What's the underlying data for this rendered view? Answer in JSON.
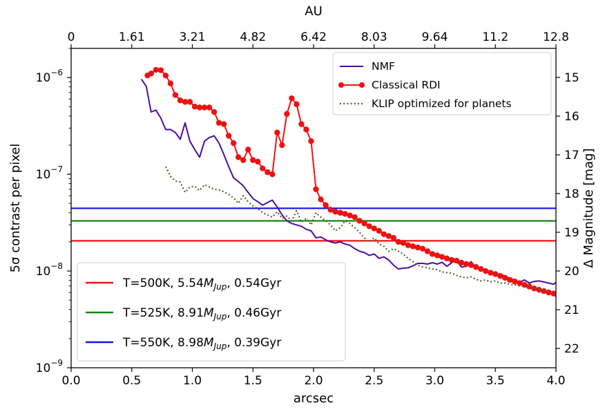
{
  "chart_data": {
    "type": "line",
    "xlabel": "arcsec",
    "ylabel": "5σ contrast per pixel",
    "top_xlabel": "AU",
    "right_ylabel": "Δ Magnitude [mag]",
    "xlim": [
      0.0,
      4.0
    ],
    "ylim_log": [
      1e-09,
      2e-06
    ],
    "y_scale": "log",
    "right_ylim": [
      22.5,
      14.25
    ],
    "x_ticks": [
      "0.0",
      "0.5",
      "1.0",
      "1.5",
      "2.0",
      "2.5",
      "3.0",
      "3.5",
      "4.0"
    ],
    "x_tick_values": [
      0.0,
      0.5,
      1.0,
      1.5,
      2.0,
      2.5,
      3.0,
      3.5,
      4.0
    ],
    "top_ticks": [
      "0",
      "1.61",
      "3.21",
      "4.82",
      "6.42",
      "8.03",
      "9.64",
      "11.2",
      "12.8"
    ],
    "y_ticks": [
      {
        "value": 1e-06,
        "base": "10",
        "exp": "−6"
      },
      {
        "value": 1e-07,
        "base": "10",
        "exp": "−7"
      },
      {
        "value": 1e-08,
        "base": "10",
        "exp": "−8"
      },
      {
        "value": 1e-09,
        "base": "10",
        "exp": "−9"
      }
    ],
    "right_ticks": [
      "15",
      "16",
      "17",
      "18",
      "19",
      "20",
      "21",
      "22"
    ],
    "right_tick_values": [
      15,
      16,
      17,
      18,
      19,
      20,
      21,
      22
    ],
    "series": [
      {
        "name": "NMF",
        "color": "#4b0c9c",
        "style": "solid",
        "x": [
          0.58,
          0.62,
          0.66,
          0.7,
          0.74,
          0.78,
          0.82,
          0.86,
          0.9,
          0.94,
          0.98,
          1.02,
          1.06,
          1.1,
          1.14,
          1.18,
          1.22,
          1.26,
          1.3,
          1.34,
          1.38,
          1.42,
          1.46,
          1.5,
          1.54,
          1.58,
          1.62,
          1.66,
          1.7,
          1.74,
          1.78,
          1.82,
          1.86,
          1.9,
          1.94,
          1.98,
          2.02,
          2.06,
          2.1,
          2.14,
          2.18,
          2.22,
          2.26,
          2.3,
          2.34,
          2.38,
          2.42,
          2.46,
          2.5,
          2.54,
          2.58,
          2.62,
          2.66,
          2.7,
          2.74,
          2.78,
          2.82,
          2.86,
          2.9,
          2.94,
          2.98,
          3.02,
          3.06,
          3.1,
          3.14,
          3.18,
          3.22,
          3.26,
          3.3,
          3.34,
          3.38,
          3.42,
          3.46,
          3.5,
          3.54,
          3.58,
          3.62,
          3.66,
          3.7,
          3.74,
          3.78,
          3.82,
          3.86,
          3.9,
          3.94,
          3.98,
          4.0
        ],
        "y": [
          9.6e-07,
          8.1e-07,
          4.4e-07,
          4.6e-07,
          3.8e-07,
          2.9e-07,
          2.9e-07,
          2.7e-07,
          2.3e-07,
          3.4e-07,
          2.2e-07,
          1.8e-07,
          1.5e-07,
          2.2e-07,
          2.4e-07,
          2.5e-07,
          2.1e-07,
          1.6e-07,
          1.2e-07,
          9.2e-08,
          8.4e-08,
          7.6e-08,
          6.5e-08,
          5.6e-08,
          5.2e-08,
          4.8e-08,
          5.1e-08,
          5.4e-08,
          4.6e-08,
          3.8e-08,
          3.3e-08,
          3.1e-08,
          3e-08,
          2.9e-08,
          2.7e-08,
          2.6e-08,
          2.2e-08,
          2.25e-08,
          2.1e-08,
          2e-08,
          1.95e-08,
          2e-08,
          1.9e-08,
          1.85e-08,
          1.7e-08,
          1.6e-08,
          1.55e-08,
          1.45e-08,
          1.5e-08,
          1.35e-08,
          1.4e-08,
          1.3e-08,
          1.15e-08,
          1.05e-08,
          1.07e-08,
          1.08e-08,
          1.13e-08,
          1.2e-08,
          1.2e-08,
          1.18e-08,
          1.22e-08,
          1.18e-08,
          1.23e-08,
          1.12e-08,
          1.22e-08,
          1.28e-08,
          1.1e-08,
          1.12e-08,
          1.25e-08,
          1.08e-08,
          1.06e-08,
          1e-08,
          9.6e-09,
          9.4e-09,
          9.2e-09,
          8.9e-09,
          8.3e-09,
          8.1e-09,
          7.6e-09,
          8.1e-09,
          7.5e-09,
          7.8e-09,
          7.9e-09,
          7.7e-09,
          7.5e-09,
          7.3e-09,
          7.6e-09
        ]
      },
      {
        "name": "Classical RDI",
        "color": "#ee1111",
        "style": "solid",
        "marker": "circle",
        "x": [
          0.63,
          0.66,
          0.7,
          0.74,
          0.78,
          0.82,
          0.86,
          0.9,
          0.94,
          0.98,
          1.02,
          1.06,
          1.1,
          1.14,
          1.18,
          1.22,
          1.26,
          1.3,
          1.34,
          1.38,
          1.42,
          1.46,
          1.5,
          1.54,
          1.58,
          1.62,
          1.66,
          1.7,
          1.74,
          1.78,
          1.82,
          1.86,
          1.9,
          1.94,
          1.98,
          2.02,
          2.06,
          2.1,
          2.14,
          2.18,
          2.22,
          2.26,
          2.3,
          2.34,
          2.38,
          2.42,
          2.46,
          2.5,
          2.54,
          2.58,
          2.62,
          2.66,
          2.7,
          2.74,
          2.78,
          2.82,
          2.86,
          2.9,
          2.94,
          2.98,
          3.02,
          3.06,
          3.1,
          3.14,
          3.18,
          3.22,
          3.26,
          3.3,
          3.34,
          3.38,
          3.42,
          3.46,
          3.5,
          3.54,
          3.58,
          3.62,
          3.66,
          3.7,
          3.74,
          3.78,
          3.82,
          3.86,
          3.9,
          3.94,
          3.98,
          4.0
        ],
        "y": [
          1.05e-06,
          1.1e-06,
          1.2e-06,
          1.19e-06,
          1.05e-06,
          8.7e-07,
          6.6e-07,
          5.8e-07,
          5.6e-07,
          5.6e-07,
          5e-07,
          4.9e-07,
          4.9e-07,
          4.9e-07,
          4.4e-07,
          3.4e-07,
          3.3e-07,
          2.5e-07,
          2.1e-07,
          1.5e-07,
          1.4e-07,
          1.8e-07,
          1.4e-07,
          1.35e-07,
          1.15e-07,
          1.05e-07,
          1e-07,
          2.7e-07,
          2e-07,
          4.2e-07,
          6.1e-07,
          5.3e-07,
          3.3e-07,
          2.9e-07,
          2.2e-07,
          7e-08,
          5.5e-08,
          4.8e-08,
          4.3e-08,
          4.1e-08,
          4e-08,
          3.9e-08,
          3.75e-08,
          3.6e-08,
          3.3e-08,
          3.1e-08,
          2.9e-08,
          2.75e-08,
          2.6e-08,
          2.4e-08,
          2.3e-08,
          2.2e-08,
          2e-08,
          1.95e-08,
          1.85e-08,
          1.8e-08,
          1.75e-08,
          1.7e-08,
          1.6e-08,
          1.5e-08,
          1.45e-08,
          1.4e-08,
          1.35e-08,
          1.3e-08,
          1.28e-08,
          1.22e-08,
          1.18e-08,
          1.15e-08,
          1.1e-08,
          1.05e-08,
          1e-08,
          9.6e-09,
          9.3e-09,
          8.9e-09,
          8.5e-09,
          8.1e-09,
          7.8e-09,
          7.5e-09,
          7.2e-09,
          6.9e-09,
          6.6e-09,
          6.4e-09,
          6.2e-09,
          6e-09,
          5.85e-09,
          5.8e-09
        ]
      },
      {
        "name": "KLIP optimized for planets",
        "color": "#55602a",
        "style": "dotted",
        "x": [
          0.78,
          0.82,
          0.86,
          0.9,
          0.94,
          0.98,
          1.02,
          1.06,
          1.1,
          1.14,
          1.18,
          1.22,
          1.26,
          1.3,
          1.34,
          1.38,
          1.42,
          1.46,
          1.5,
          1.54,
          1.58,
          1.62,
          1.66,
          1.7,
          1.74,
          1.78,
          1.82,
          1.86,
          1.9,
          1.94,
          1.98,
          2.02,
          2.06,
          2.1,
          2.14,
          2.18,
          2.22,
          2.26,
          2.3,
          2.34,
          2.38,
          2.42,
          2.46,
          2.5,
          2.54,
          2.58,
          2.62,
          2.66,
          2.7,
          2.74,
          2.78,
          2.82,
          2.86,
          2.9,
          2.94,
          2.98,
          3.02,
          3.06,
          3.1,
          3.14,
          3.18,
          3.22,
          3.26,
          3.3,
          3.34,
          3.38,
          3.42,
          3.46,
          3.5,
          3.54,
          3.58,
          3.62,
          3.66,
          3.7,
          3.74,
          3.78,
          3.82,
          3.86,
          3.9,
          3.94,
          3.98
        ],
        "y": [
          1.2e-07,
          9.5e-08,
          8.5e-08,
          8.3e-08,
          6.5e-08,
          7.4e-08,
          7.5e-08,
          6.8e-08,
          7.8e-08,
          7.4e-08,
          7e-08,
          6.9e-08,
          6.6e-08,
          6.2e-08,
          5.7e-08,
          5e-08,
          6e-08,
          5.2e-08,
          4.7e-08,
          4.4e-08,
          4e-08,
          3.8e-08,
          3.6e-08,
          4.1e-08,
          3.5e-08,
          3.7e-08,
          3.3e-08,
          4.2e-08,
          3.2e-08,
          3.5e-08,
          3e-08,
          4e-08,
          3.6e-08,
          3.3e-08,
          3e-08,
          2.6e-08,
          2.8e-08,
          3.3e-08,
          3.1e-08,
          2.8e-08,
          2.5e-08,
          2.2e-08,
          2e-08,
          2.2e-08,
          1.9e-08,
          1.8e-08,
          1.6e-08,
          1.7e-08,
          1.6e-08,
          1.5e-08,
          1.35e-08,
          1.25e-08,
          1.15e-08,
          1.1e-08,
          1.08e-08,
          1.05e-08,
          1.03e-08,
          9.8e-09,
          9.6e-09,
          9.5e-09,
          9e-09,
          8.7e-09,
          8.5e-09,
          8.7e-09,
          8.2e-09,
          7.9e-09,
          8.1e-09,
          7.7e-09,
          7.9e-09,
          7.5e-09,
          7.5e-09,
          7.3e-09,
          7.2e-09,
          7e-09,
          6.9e-09,
          6.8e-09,
          6.7e-09,
          6.5e-09,
          6.4e-09,
          6.2e-09,
          6e-09
        ]
      }
    ],
    "hlines": [
      {
        "name_prefix": "T=500K, 5.54",
        "name_var": "M",
        "name_sub": "Jup",
        "name_suffix": ", 0.54Gyr",
        "value": 2.05e-08,
        "color": "#ee1111"
      },
      {
        "name_prefix": "T=525K, 8.91",
        "name_var": "M",
        "name_sub": "Jup",
        "name_suffix": ", 0.46Gyr",
        "value": 3.3e-08,
        "color": "#118811"
      },
      {
        "name_prefix": "T=550K, 8.98",
        "name_var": "M",
        "name_sub": "Jup",
        "name_suffix": ", 0.39Gyr",
        "value": 4.45e-08,
        "color": "#1111ee"
      }
    ],
    "legends": [
      "top-right",
      "bottom-left"
    ]
  }
}
